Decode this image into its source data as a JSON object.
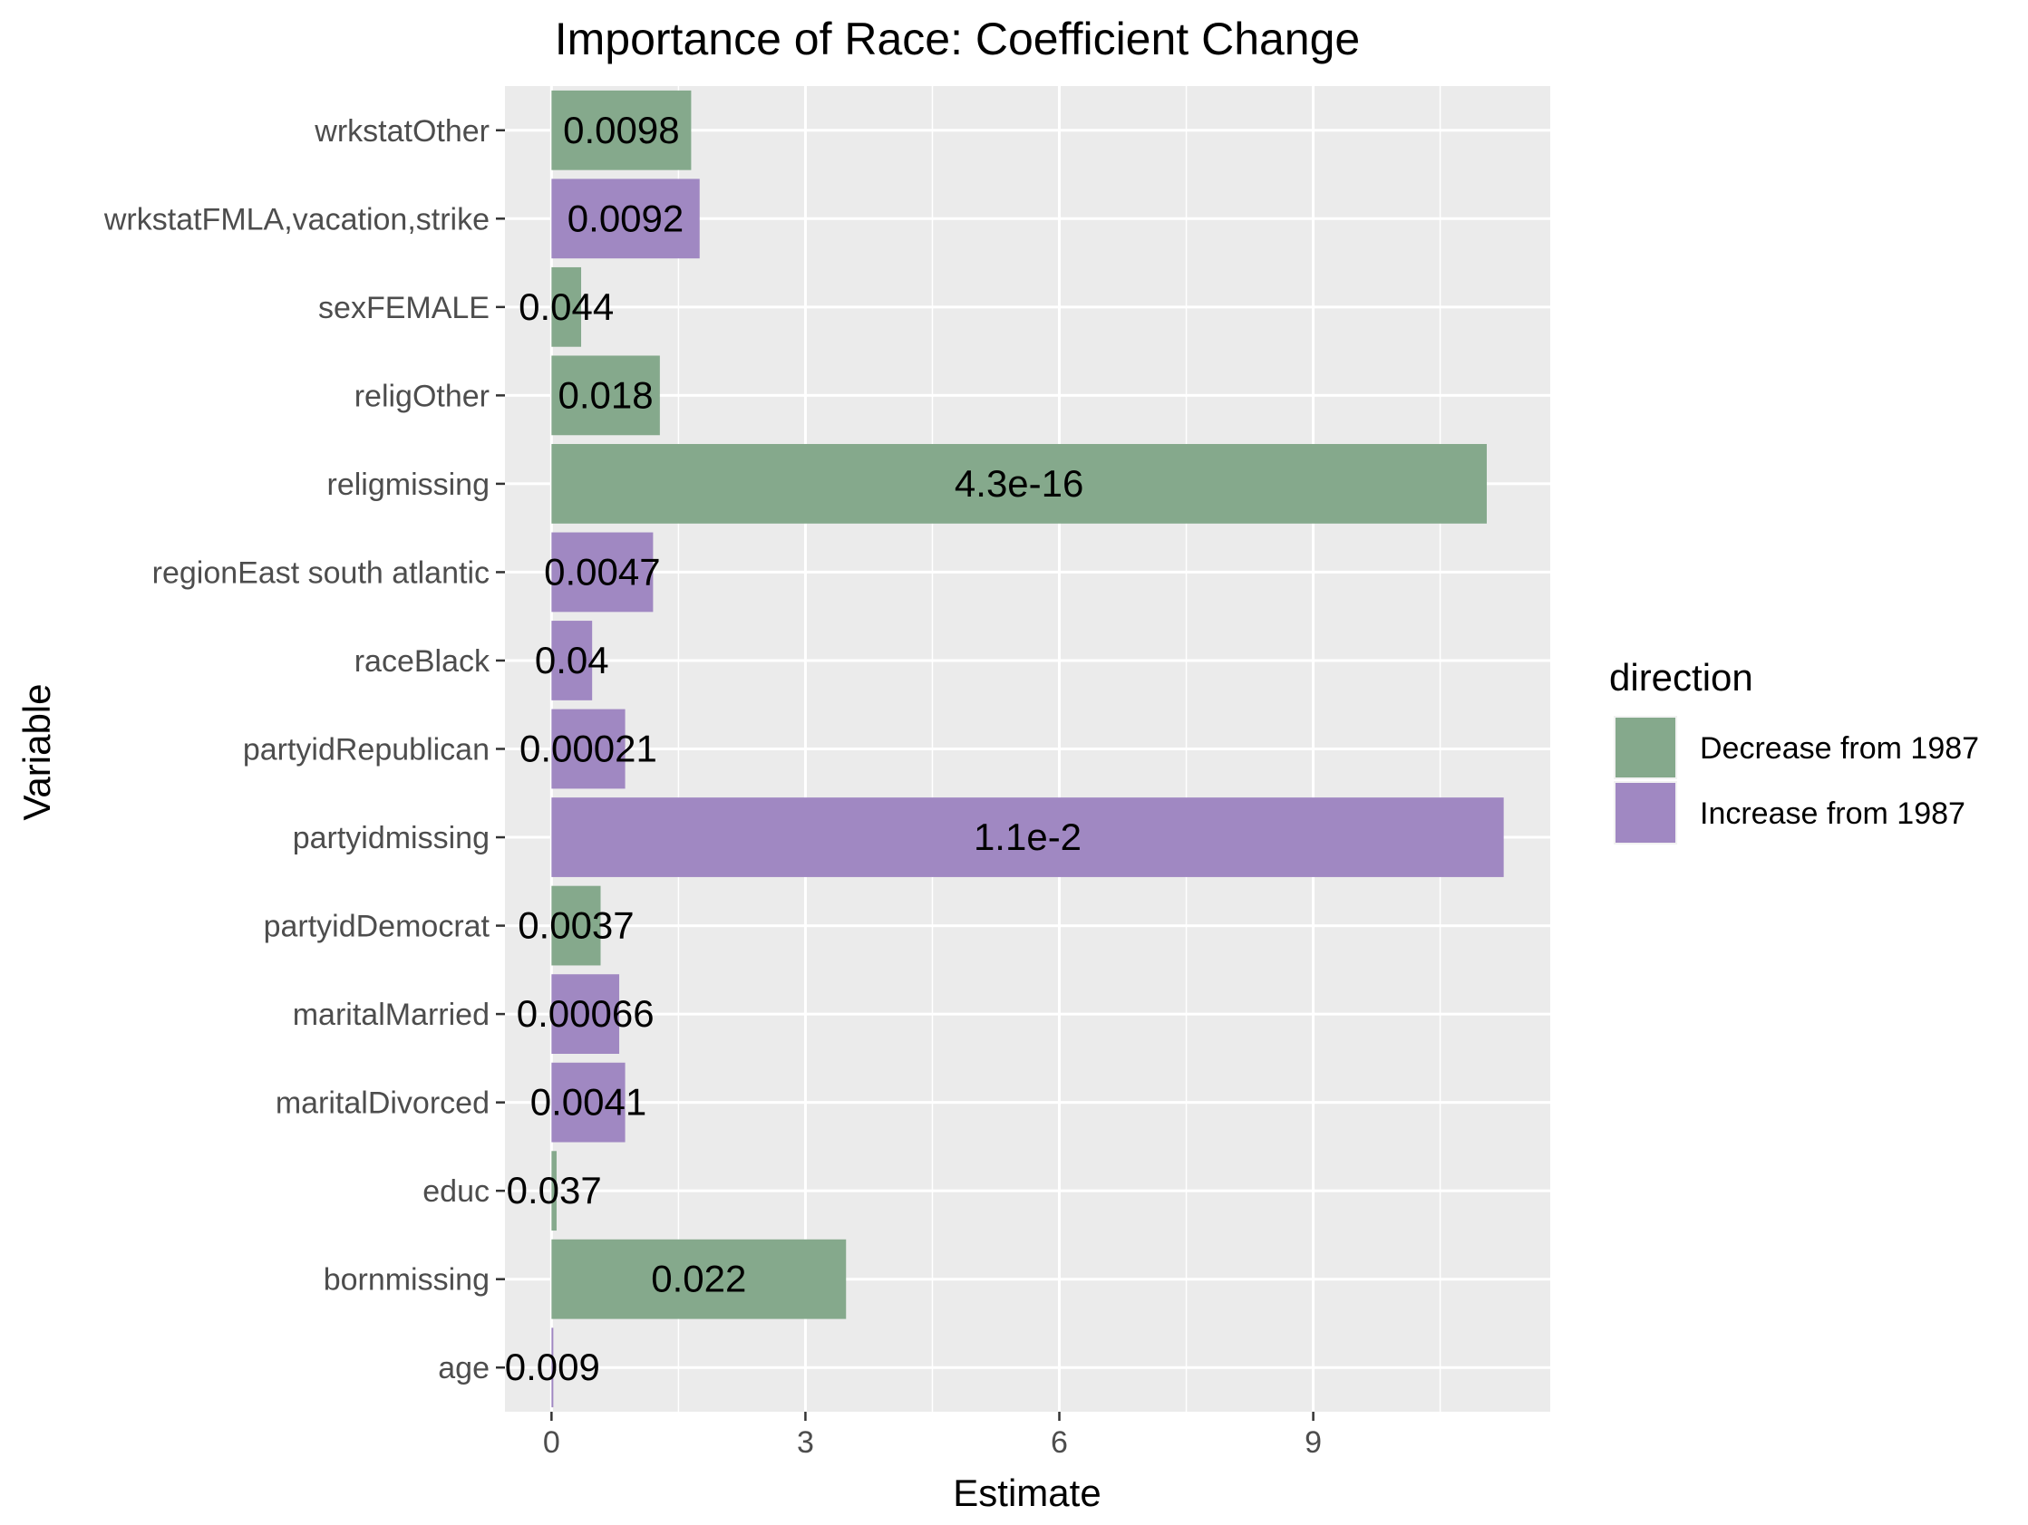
{
  "chart_data": {
    "type": "bar",
    "orientation": "horizontal",
    "title": "Importance of Race: Coefficient Change",
    "xlabel": "Estimate",
    "ylabel": "Variable",
    "xlim": [
      -0.55,
      11.8
    ],
    "xticks": [
      0,
      3,
      6,
      9
    ],
    "grid": true,
    "legend": {
      "title": "direction",
      "position": "right",
      "entries": [
        {
          "key": "decrease",
          "label": "Decrease from 1987",
          "color": "#85A98C"
        },
        {
          "key": "increase",
          "label": "Increase from 1987",
          "color": "#A088C2"
        }
      ]
    },
    "bars": [
      {
        "category": "wrkstatOther",
        "value": 1.65,
        "direction": "decrease",
        "label": "0.0098"
      },
      {
        "category": "wrkstatFMLA,vacation,strike",
        "value": 1.75,
        "direction": "increase",
        "label": "0.0092"
      },
      {
        "category": "sexFEMALE",
        "value": 0.35,
        "direction": "decrease",
        "label": "0.044"
      },
      {
        "category": "religOther",
        "value": 1.28,
        "direction": "decrease",
        "label": "0.018"
      },
      {
        "category": "religmissing",
        "value": 11.05,
        "direction": "decrease",
        "label": "4.3e-16"
      },
      {
        "category": "regionEast south atlantic",
        "value": 1.2,
        "direction": "increase",
        "label": "0.0047"
      },
      {
        "category": "raceBlack",
        "value": 0.48,
        "direction": "increase",
        "label": "0.04"
      },
      {
        "category": "partyidRepublican",
        "value": 0.87,
        "direction": "increase",
        "label": "0.00021"
      },
      {
        "category": "partyidmissing",
        "value": 11.25,
        "direction": "increase",
        "label": "1.1e-2"
      },
      {
        "category": "partyidDemocrat",
        "value": 0.58,
        "direction": "decrease",
        "label": "0.0037"
      },
      {
        "category": "maritalMarried",
        "value": 0.8,
        "direction": "increase",
        "label": "0.00066"
      },
      {
        "category": "maritalDivorced",
        "value": 0.87,
        "direction": "increase",
        "label": "0.0041"
      },
      {
        "category": "educ",
        "value": 0.06,
        "direction": "decrease",
        "label": "0.037"
      },
      {
        "category": "bornmissing",
        "value": 3.48,
        "direction": "decrease",
        "label": "0.022"
      },
      {
        "category": "age",
        "value": 0.02,
        "direction": "increase",
        "label": "0.009"
      }
    ]
  }
}
